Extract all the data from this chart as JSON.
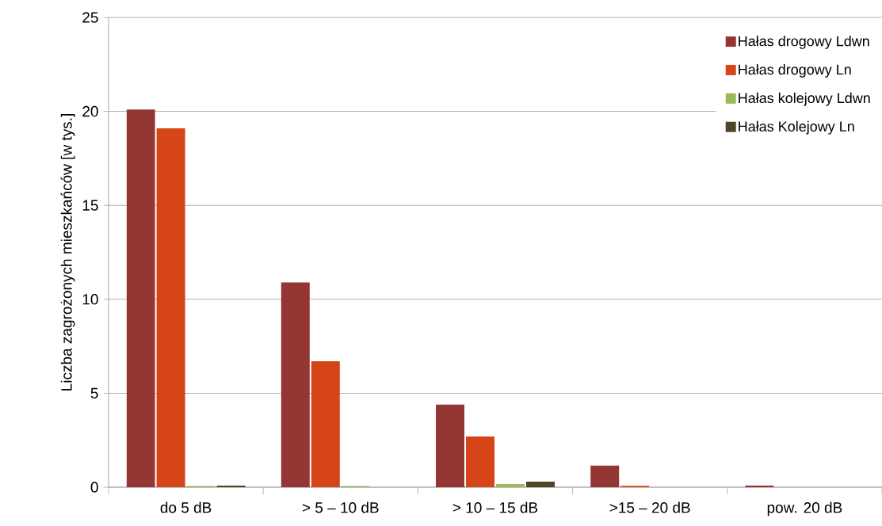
{
  "chart_data": {
    "type": "bar",
    "ylabel": "Liczba zagrożonych mieszkańców  [w tys.]",
    "categories": [
      "do 5 dB",
      "> 5 – 10  dB",
      "> 10 – 15 dB",
      ">15 – 20 dB",
      "pow. 20 dB"
    ],
    "series": [
      {
        "name": "Hałas drogowy Ldwn",
        "color": "#943634",
        "values": [
          20.1,
          10.9,
          4.4,
          1.15,
          0.08
        ]
      },
      {
        "name": "Hałas drogowy Ln",
        "color": "#d64518",
        "values": [
          19.1,
          6.7,
          2.7,
          0.07,
          0
        ]
      },
      {
        "name": "Hałas kolejowy Ldwn",
        "color": "#9bbb59",
        "values": [
          0.06,
          0.06,
          0.17,
          0,
          0
        ]
      },
      {
        "name": "Hałas Kolejowy Ln",
        "color": "#4f4628",
        "values": [
          0.08,
          0,
          0.3,
          0,
          0
        ]
      }
    ],
    "ylim": [
      0,
      25
    ],
    "yticks": [
      0,
      5,
      10,
      15,
      20,
      25
    ],
    "grid": "y",
    "legend": "top right"
  }
}
